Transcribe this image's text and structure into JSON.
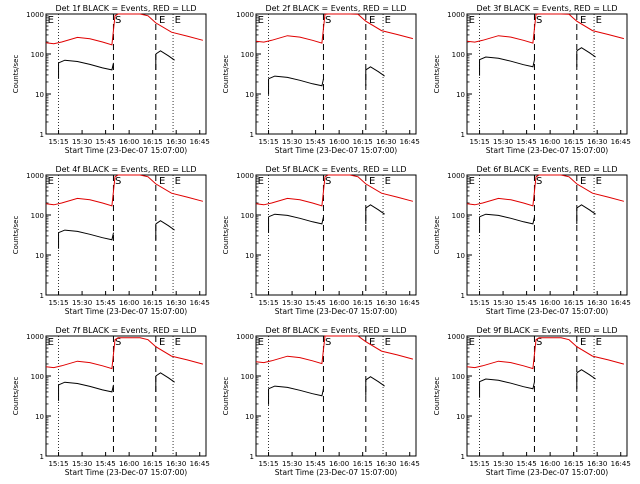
{
  "chart_data": {
    "type": "line",
    "layout": "3x3 grid",
    "ylabel": "Counts/sec",
    "xlabel": "Start Time (23-Dec-07 15:07:00)",
    "x_tick_labels": [
      "15:15",
      "15:30",
      "15:45",
      "16:00",
      "16:15",
      "16:30",
      "16:45"
    ],
    "y_tick_labels": [
      "1",
      "10",
      "100",
      "1000"
    ],
    "ylim": [
      1,
      1000
    ],
    "y_scale": "log",
    "xlim_minutes_after_start": [
      0,
      102
    ],
    "event_markers": {
      "dotted_minutes": [
        8,
        81
      ],
      "dashed_minutes": [
        43,
        70
      ],
      "labels": [
        "E",
        "S",
        "E",
        "E"
      ]
    },
    "colors": {
      "events": "#000000",
      "lld": "#e00000"
    },
    "panels": [
      {
        "title": "Det 1f BLACK = Events, RED = LLD"
      },
      {
        "title": "Det 2f BLACK = Events, RED = LLD"
      },
      {
        "title": "Det 3f BLACK = Events, RED = LLD"
      },
      {
        "title": "Det 4f BLACK = Events, RED = LLD"
      },
      {
        "title": "Det 5f BLACK = Events, RED = LLD"
      },
      {
        "title": "Det 6f BLACK = Events, RED = LLD"
      },
      {
        "title": "Det 7f BLACK = Events, RED = LLD"
      },
      {
        "title": "Det 8f BLACK = Events, RED = LLD"
      },
      {
        "title": "Det 9f BLACK = Events, RED = LLD"
      }
    ],
    "series": [
      {
        "name": "Events",
        "segments": [
          {
            "x": [
              8,
              12,
              20,
              28,
              36,
              42,
              43
            ],
            "y": [
              60,
              70,
              65,
              55,
              45,
              40,
              60
            ]
          },
          {
            "x": [
              70,
              73,
              78,
              82
            ],
            "y": [
              100,
              120,
              90,
              70
            ]
          }
        ]
      },
      {
        "name": "LLD",
        "x": [
          0,
          5,
          10,
          20,
          28,
          36,
          42,
          44,
          46,
          50,
          60,
          65,
          70,
          80,
          90,
          100
        ],
        "y": [
          190,
          180,
          200,
          260,
          240,
          200,
          170,
          900,
          1000,
          1000,
          1000,
          900,
          600,
          350,
          280,
          220
        ]
      }
    ]
  }
}
